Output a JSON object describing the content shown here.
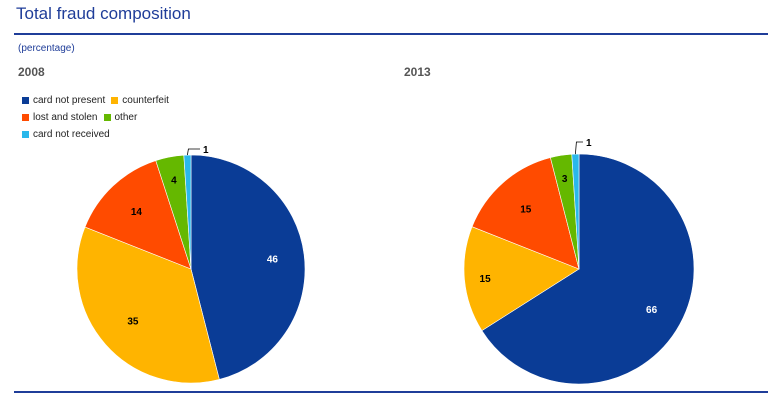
{
  "header": {
    "title": "Total fraud composition",
    "subtitle": "(percentage)"
  },
  "legend": [
    {
      "name": "card not present",
      "color": "#0a3c96"
    },
    {
      "name": "counterfeit",
      "color": "#ffb400"
    },
    {
      "name": "lost and stolen",
      "color": "#ff4b00"
    },
    {
      "name": "other",
      "color": "#65b800"
    },
    {
      "name": "card not received",
      "color": "#2ab8eb"
    }
  ],
  "chart_data": [
    {
      "type": "pie",
      "title": "2008",
      "categories": [
        "card not present",
        "counterfeit",
        "lost and stolen",
        "other",
        "card not received"
      ],
      "values": [
        46,
        35,
        14,
        4,
        1
      ],
      "colors": [
        "#0a3c96",
        "#ffb400",
        "#ff4b00",
        "#65b800",
        "#2ab8eb"
      ],
      "labels": [
        "46",
        "35",
        "14",
        "4",
        "1"
      ],
      "label_colors": [
        "#ffffff",
        "#000000",
        "#000000",
        "#000000",
        "#000000"
      ]
    },
    {
      "type": "pie",
      "title": "2013",
      "categories": [
        "card not present",
        "counterfeit",
        "lost and stolen",
        "other",
        "card not received"
      ],
      "values": [
        66,
        15,
        15,
        3,
        1
      ],
      "colors": [
        "#0a3c96",
        "#ffb400",
        "#ff4b00",
        "#65b800",
        "#2ab8eb"
      ],
      "labels": [
        "66",
        "15",
        "15",
        "3",
        "1"
      ],
      "label_colors": [
        "#ffffff",
        "#000000",
        "#000000",
        "#000000",
        "#000000"
      ]
    }
  ]
}
